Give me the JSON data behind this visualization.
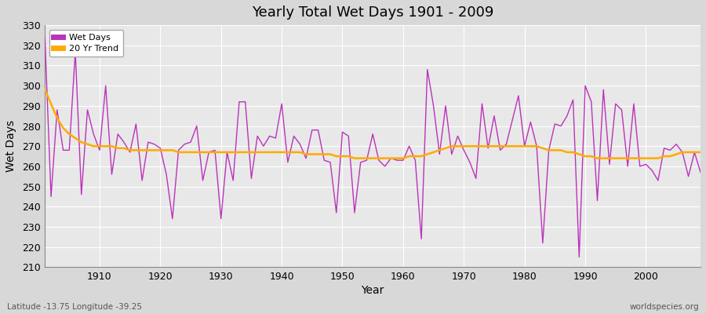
{
  "title": "Yearly Total Wet Days 1901 - 2009",
  "xlabel": "Year",
  "ylabel": "Wet Days",
  "xlim": [
    1901,
    2009
  ],
  "ylim": [
    210,
    330
  ],
  "yticks": [
    210,
    220,
    230,
    240,
    250,
    260,
    270,
    280,
    290,
    300,
    310,
    320,
    330
  ],
  "xticks": [
    1910,
    1920,
    1930,
    1940,
    1950,
    1960,
    1970,
    1980,
    1990,
    2000
  ],
  "fig_color": "#d8d8d8",
  "plot_bg_color": "#e8e8e8",
  "line_color": "#bb33bb",
  "trend_color": "#ffaa00",
  "subtitle_left": "Latitude -13.75 Longitude -39.25",
  "subtitle_right": "worldspecies.org",
  "years": [
    1901,
    1902,
    1903,
    1904,
    1905,
    1906,
    1907,
    1908,
    1909,
    1910,
    1911,
    1912,
    1913,
    1914,
    1915,
    1916,
    1917,
    1918,
    1919,
    1920,
    1921,
    1922,
    1923,
    1924,
    1925,
    1926,
    1927,
    1928,
    1929,
    1930,
    1931,
    1932,
    1933,
    1934,
    1935,
    1936,
    1937,
    1938,
    1939,
    1940,
    1941,
    1942,
    1943,
    1944,
    1945,
    1946,
    1947,
    1948,
    1949,
    1950,
    1951,
    1952,
    1953,
    1954,
    1955,
    1956,
    1957,
    1958,
    1959,
    1960,
    1961,
    1962,
    1963,
    1964,
    1965,
    1966,
    1967,
    1968,
    1969,
    1970,
    1971,
    1972,
    1973,
    1974,
    1975,
    1976,
    1977,
    1978,
    1979,
    1980,
    1981,
    1982,
    1983,
    1984,
    1985,
    1986,
    1987,
    1988,
    1989,
    1990,
    1991,
    1992,
    1993,
    1994,
    1995,
    1996,
    1997,
    1998,
    1999,
    2000,
    2001,
    2002,
    2003,
    2004,
    2005,
    2006,
    2007,
    2008,
    2009
  ],
  "wet_days": [
    323,
    245,
    288,
    268,
    268,
    317,
    246,
    288,
    276,
    268,
    300,
    256,
    276,
    272,
    267,
    281,
    253,
    272,
    271,
    269,
    256,
    234,
    268,
    271,
    272,
    280,
    253,
    267,
    268,
    234,
    267,
    253,
    292,
    292,
    254,
    275,
    270,
    275,
    274,
    291,
    262,
    275,
    271,
    264,
    278,
    278,
    263,
    262,
    237,
    277,
    275,
    237,
    262,
    263,
    276,
    263,
    260,
    264,
    263,
    263,
    270,
    263,
    224,
    308,
    290,
    266,
    290,
    266,
    275,
    268,
    262,
    254,
    291,
    269,
    285,
    268,
    271,
    283,
    295,
    270,
    282,
    270,
    222,
    268,
    281,
    280,
    285,
    293,
    215,
    300,
    292,
    243,
    298,
    261,
    291,
    288,
    260,
    291,
    260,
    261,
    258,
    253,
    269,
    268,
    271,
    267,
    255,
    267,
    257
  ],
  "trend_values": [
    298,
    291,
    284,
    279,
    276,
    274,
    272,
    271,
    270,
    270,
    270,
    270,
    269,
    269,
    268,
    268,
    268,
    268,
    268,
    268,
    268,
    268,
    267,
    267,
    267,
    267,
    267,
    267,
    267,
    267,
    267,
    267,
    267,
    267,
    267,
    267,
    267,
    267,
    267,
    267,
    267,
    267,
    267,
    266,
    266,
    266,
    266,
    266,
    265,
    265,
    265,
    264,
    264,
    264,
    264,
    264,
    264,
    264,
    264,
    264,
    265,
    265,
    265,
    266,
    267,
    268,
    269,
    270,
    270,
    270,
    270,
    270,
    270,
    270,
    270,
    270,
    270,
    270,
    270,
    270,
    270,
    270,
    269,
    268,
    268,
    268,
    267,
    267,
    266,
    265,
    265,
    264,
    264,
    264,
    264,
    264,
    264,
    264,
    264,
    264,
    264,
    264,
    265,
    265,
    266,
    267,
    267,
    267,
    267
  ]
}
